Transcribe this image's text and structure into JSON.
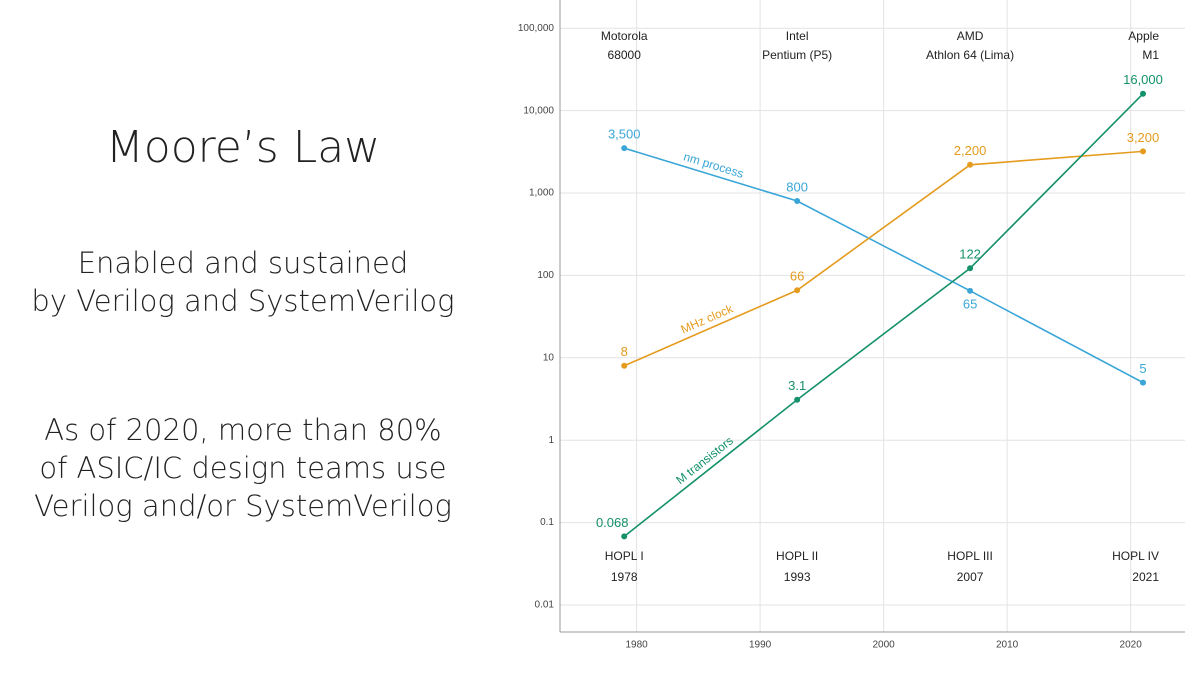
{
  "slide": {
    "title": "Moore’s Law",
    "paragraphs": [
      [
        "Enabled and sustained",
        "by Verilog and SystemVerilog"
      ],
      [
        "As of 2020, more than 80%",
        "of ASIC/IC design teams use",
        "Verilog and/or SystemVerilog"
      ]
    ]
  },
  "chart_data": {
    "type": "line",
    "log_y": true,
    "grid": true,
    "x": [
      1979,
      1993,
      2007,
      2021
    ],
    "xlim": [
      1973.8,
      2024.4
    ],
    "xticks": [
      1980,
      1990,
      2000,
      2010,
      2020
    ],
    "ylim": [
      0.0047,
      220000
    ],
    "yticks": [
      0.01,
      0.1,
      1,
      10,
      100,
      {
        "value": 1000,
        "label": "1,000"
      },
      {
        "value": 10000,
        "label": "10,000"
      },
      {
        "value": 100000,
        "label": "100,000"
      }
    ],
    "series": [
      {
        "name": "nm process",
        "color": "#3aa6d8",
        "values": [
          3500,
          800,
          65,
          5
        ],
        "value_labels": [
          "3,500",
          "800",
          "65",
          "5"
        ]
      },
      {
        "name": "MHz clock",
        "color": "#e49b1e",
        "values": [
          8,
          66,
          2200,
          3200
        ],
        "value_labels": [
          "8",
          "66",
          "2,200",
          "3,200"
        ]
      },
      {
        "name": "M transistors",
        "color": "#14906a",
        "values": [
          0.068,
          3.1,
          122,
          16000
        ],
        "value_labels": [
          "0.068",
          "3.1",
          "122",
          "16,000"
        ]
      }
    ],
    "top_annotations": [
      [
        "Motorola",
        "68000"
      ],
      [
        "Intel",
        "Pentium (P5)"
      ],
      [
        "AMD",
        "Athlon 64 (Lima)"
      ],
      [
        "Apple",
        "M1"
      ]
    ],
    "bottom_annotations": [
      [
        "HOPL I",
        "1978"
      ],
      [
        "HOPL II",
        "1993"
      ],
      [
        "HOPL III",
        "2007"
      ],
      [
        "HOPL IV",
        "2021"
      ]
    ]
  }
}
